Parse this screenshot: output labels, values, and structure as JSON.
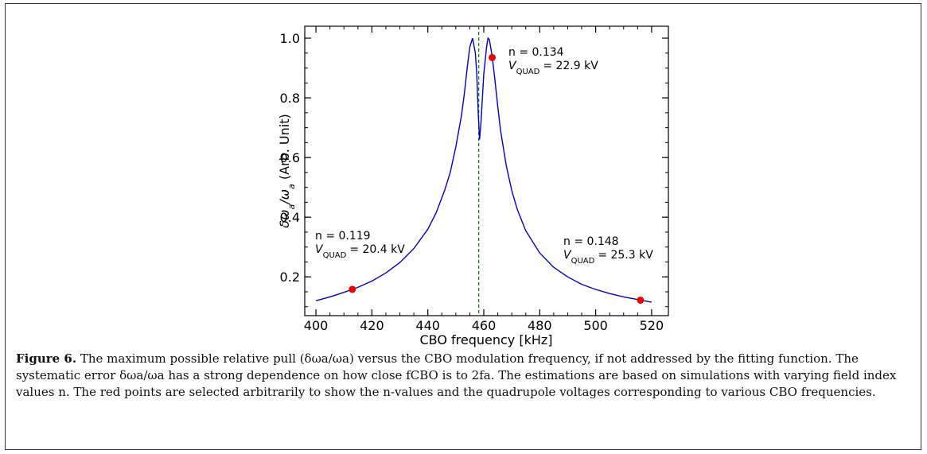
{
  "chart_data": {
    "type": "line",
    "xlabel": "CBO frequency [kHz]",
    "xlim": [
      396,
      526
    ],
    "ylim": [
      0.07,
      1.04
    ],
    "x_ticks": [
      400,
      420,
      440,
      460,
      480,
      500,
      520
    ],
    "y_ticks": [
      0.2,
      0.4,
      0.6,
      0.8,
      1.0
    ],
    "y_tick_labels": [
      "0.2",
      "0.4",
      "0.6",
      "0.8",
      "1.0"
    ],
    "series": [
      {
        "color": "#0000cc",
        "x": [
          400,
          405,
          410,
          415,
          420,
          425,
          430,
          435,
          440,
          443,
          446,
          448,
          450,
          452,
          453,
          454,
          455,
          456,
          457,
          457.5,
          458,
          458.5,
          459,
          460,
          461,
          461.5,
          462,
          463,
          464,
          465,
          466,
          468,
          470,
          472,
          475,
          480,
          485,
          490,
          495,
          500,
          505,
          510,
          515,
          520
        ],
        "y": [
          0.12,
          0.133,
          0.148,
          0.165,
          0.186,
          0.213,
          0.248,
          0.295,
          0.36,
          0.415,
          0.49,
          0.55,
          0.635,
          0.74,
          0.81,
          0.895,
          0.97,
          1.0,
          0.95,
          0.88,
          0.75,
          0.66,
          0.72,
          0.88,
          0.97,
          1.0,
          0.995,
          0.94,
          0.86,
          0.77,
          0.69,
          0.575,
          0.49,
          0.425,
          0.355,
          0.28,
          0.232,
          0.2,
          0.175,
          0.158,
          0.144,
          0.133,
          0.124,
          0.115
        ]
      }
    ],
    "vline": {
      "x": 458.2,
      "color": "#007700",
      "style": "dashed"
    },
    "points": [
      {
        "x": 413,
        "y": 0.158,
        "color": "#ee0000"
      },
      {
        "x": 463,
        "y": 0.935,
        "color": "#ee0000"
      },
      {
        "x": 516,
        "y": 0.122,
        "color": "#ee0000"
      }
    ],
    "annotations": [
      {
        "n": "n = 0.119",
        "v": "= 20.4 kV"
      },
      {
        "n": "n = 0.134",
        "v": "= 22.9 kV"
      },
      {
        "n": "n = 0.148",
        "v": "= 25.3 kV"
      }
    ]
  },
  "caption": {
    "label": "Figure 6.",
    "text": "The maximum possible relative pull (δωa/ωa) versus the CBO modulation frequency, if not addressed by the fitting function. The systematic error δωa/ωa has a strong dependence on how close fCBO is to 2fa. The estimations are based on simulations with varying field index values n. The red points are selected arbitrarily to show the n-values and the quadrupole voltages corresponding to various CBO frequencies."
  }
}
